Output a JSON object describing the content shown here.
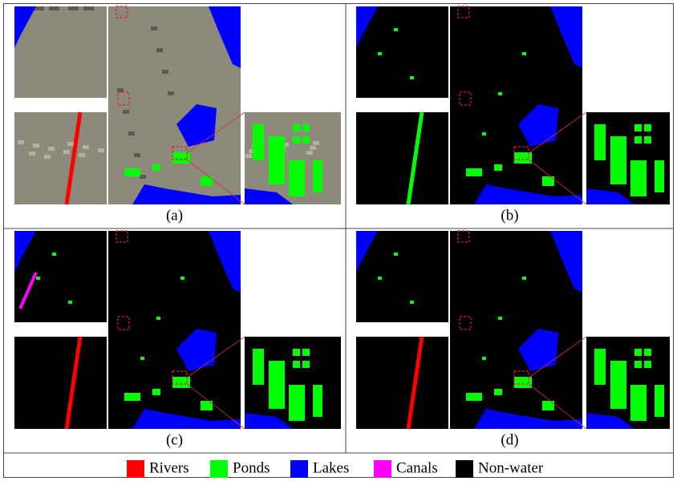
{
  "panels": [
    {
      "label": "(a)"
    },
    {
      "label": "(b)"
    },
    {
      "label": "(c)"
    },
    {
      "label": "(d)"
    }
  ],
  "legend": [
    {
      "label": "Rivers",
      "color": "#ff0000"
    },
    {
      "label": "Ponds",
      "color": "#00ff00"
    },
    {
      "label": "Lakes",
      "color": "#0000ff"
    },
    {
      "label": "Canals",
      "color": "#ff00ff"
    },
    {
      "label": "Non-water",
      "color": "#000000"
    }
  ]
}
